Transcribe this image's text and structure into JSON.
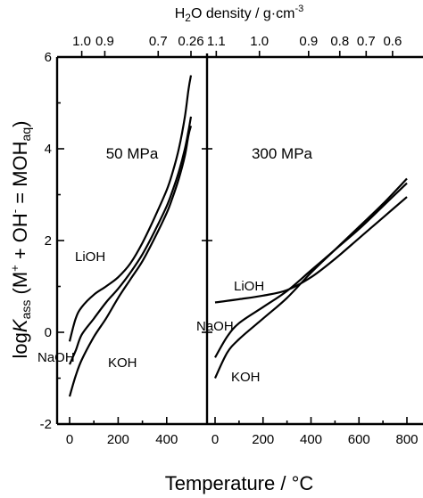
{
  "chart_data": {
    "type": "line",
    "ylabel": "logKass (M+ + OH- = MOHaq)",
    "xlabel": "Temperature / °C",
    "top_axis_label": "H2O density / g·cm-3",
    "ylim": [
      -2,
      6
    ],
    "yticks": [
      "-2",
      "0",
      "2",
      "4",
      "6"
    ],
    "panels": [
      {
        "title": "50 MPa",
        "xlim": [
          0,
          500
        ],
        "xticks": [
          "0",
          "200",
          "400"
        ],
        "xtick_values": [
          0,
          200,
          400
        ],
        "top_ticks": [
          {
            "label": "1.0",
            "x": 50
          },
          {
            "label": "0.9",
            "x": 145
          },
          {
            "label": "0.7",
            "x": 365
          },
          {
            "label": "0.26",
            "x": 500
          }
        ],
        "series": [
          {
            "name": "LiOH",
            "x": [
              0,
              25,
              50,
              100,
              150,
              200,
              250,
              300,
              350,
              400,
              425,
              450,
              475,
              490,
              500
            ],
            "y": [
              -0.2,
              0.3,
              0.55,
              0.82,
              1.0,
              1.2,
              1.5,
              1.95,
              2.5,
              3.1,
              3.5,
              4.0,
              4.7,
              5.3,
              5.6
            ]
          },
          {
            "name": "NaOH",
            "x": [
              0,
              25,
              50,
              100,
              150,
              200,
              250,
              300,
              350,
              400,
              425,
              450,
              475,
              490,
              500
            ],
            "y": [
              -0.7,
              -0.4,
              -0.05,
              0.3,
              0.65,
              0.95,
              1.3,
              1.7,
              2.2,
              2.75,
              3.1,
              3.5,
              4.0,
              4.4,
              4.7
            ]
          },
          {
            "name": "KOH",
            "x": [
              0,
              25,
              50,
              100,
              150,
              200,
              250,
              300,
              350,
              400,
              425,
              450,
              475,
              490,
              500
            ],
            "y": [
              -1.4,
              -0.95,
              -0.6,
              -0.1,
              0.3,
              0.75,
              1.15,
              1.55,
              2.05,
              2.6,
              2.95,
              3.35,
              3.85,
              4.3,
              4.5
            ]
          }
        ]
      },
      {
        "title": "300 MPa",
        "xlim": [
          0,
          800
        ],
        "xticks": [
          "0",
          "200",
          "400",
          "600",
          "800"
        ],
        "xtick_values": [
          0,
          200,
          400,
          600,
          800
        ],
        "top_ticks": [
          {
            "label": "1.1",
            "x": 5
          },
          {
            "label": "1.0",
            "x": 185
          },
          {
            "label": "0.9",
            "x": 390
          },
          {
            "label": "0.8",
            "x": 520
          },
          {
            "label": "0.7",
            "x": 630
          },
          {
            "label": "0.6",
            "x": 740
          }
        ],
        "series": [
          {
            "name": "LiOH",
            "x": [
              0,
              100,
              200,
              300,
              400,
              500,
              600,
              700,
              800
            ],
            "y": [
              0.65,
              0.72,
              0.8,
              0.92,
              1.2,
              1.6,
              2.05,
              2.5,
              2.95
            ]
          },
          {
            "name": "NaOH",
            "x": [
              0,
              50,
              100,
              200,
              300,
              400,
              500,
              600,
              700,
              800
            ],
            "y": [
              -0.55,
              -0.1,
              0.2,
              0.55,
              0.9,
              1.35,
              1.8,
              2.25,
              2.75,
              3.25
            ]
          },
          {
            "name": "KOH",
            "x": [
              0,
              50,
              100,
              200,
              300,
              400,
              500,
              600,
              700,
              800
            ],
            "y": [
              -1.0,
              -0.45,
              -0.15,
              0.3,
              0.75,
              1.3,
              1.8,
              2.3,
              2.8,
              3.35
            ]
          }
        ]
      }
    ]
  }
}
